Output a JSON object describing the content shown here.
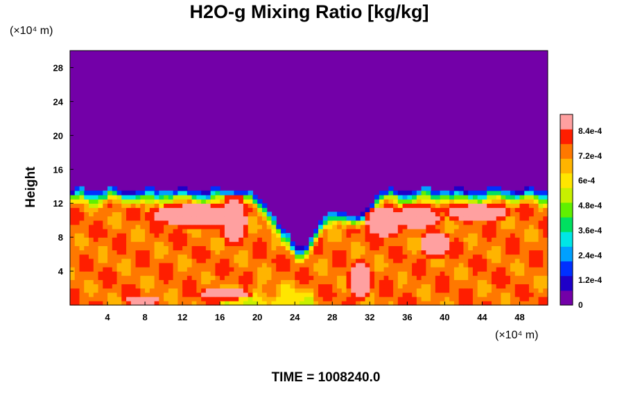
{
  "chart_data": {
    "type": "heatmap",
    "title": "H2O-g Mixing Ratio [kg/kg]",
    "ylabel": "Height",
    "xlabel": "",
    "x_unit_label": "(×10⁴ m)",
    "y_unit_label": "(×10⁴ m)",
    "time_label": "TIME = 1008240.0",
    "xlim": [
      0,
      51
    ],
    "ylim": [
      0,
      30
    ],
    "x_ticks": [
      4,
      8,
      12,
      16,
      20,
      24,
      28,
      32,
      36,
      40,
      44,
      48
    ],
    "y_ticks": [
      4,
      8,
      12,
      16,
      20,
      24,
      28
    ],
    "x_tick_labels": [
      "4",
      "8",
      "12",
      "16",
      "20",
      "24",
      "28",
      "32",
      "36",
      "40",
      "44",
      "48"
    ],
    "y_tick_labels": [
      "4",
      "8",
      "12",
      "16",
      "20",
      "24",
      "28"
    ],
    "colorbar": {
      "min": 0,
      "max": 0.00092,
      "ticks": [
        0,
        0.00012,
        0.00024,
        0.00036,
        0.00048,
        0.0006,
        0.00072,
        0.00084
      ],
      "tick_labels": [
        "0",
        "1.2e-4",
        "2.4e-4",
        "3.6e-4",
        "4.8e-4",
        "6e-4",
        "7.2e-4",
        "8.4e-4"
      ],
      "colors": [
        "#7300a8",
        "#1f00c8",
        "#0030ff",
        "#00a0ff",
        "#00e6e6",
        "#00e060",
        "#60f000",
        "#c8f000",
        "#ffe600",
        "#ffb400",
        "#ff7800",
        "#ff1e00",
        "#ffa0a0"
      ]
    }
  }
}
